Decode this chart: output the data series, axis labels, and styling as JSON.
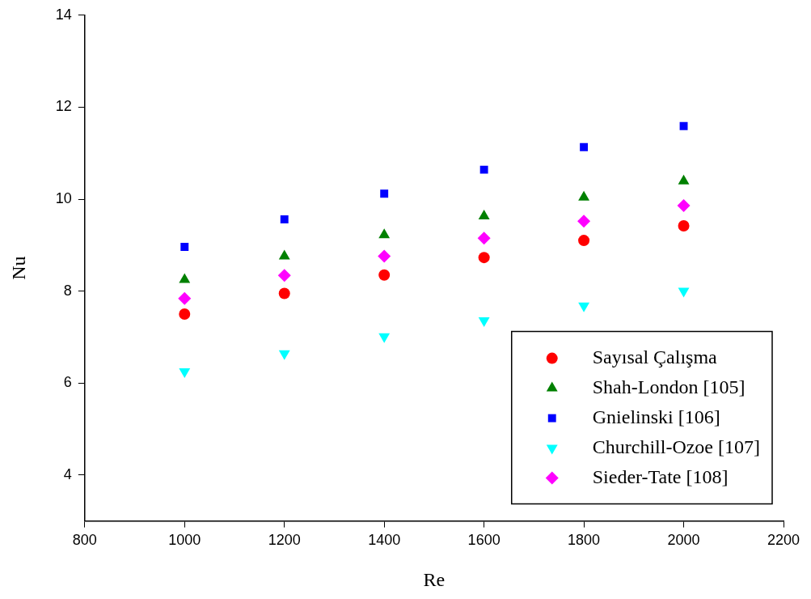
{
  "chart_data": {
    "type": "scatter",
    "xlabel": "Re",
    "ylabel": "Nu",
    "x": [
      1000,
      1200,
      1400,
      1600,
      1800,
      2000
    ],
    "xlim": [
      800,
      2200
    ],
    "xticks": [
      800,
      1000,
      1200,
      1400,
      1600,
      1800,
      2000,
      2200
    ],
    "ylim": [
      3,
      14
    ],
    "yticks": [
      4,
      6,
      8,
      10,
      12,
      14
    ],
    "grid": false,
    "legend": "bottom right",
    "series": [
      {
        "name": "Sayısal Çalışma",
        "color": "#ff0000",
        "marker": "circle",
        "values": [
          7.5,
          7.95,
          8.35,
          8.73,
          9.1,
          9.42
        ]
      },
      {
        "name": "Shah-London [105]",
        "color": "#008000",
        "marker": "triangle",
        "values": [
          8.25,
          8.76,
          9.22,
          9.63,
          10.04,
          10.39
        ]
      },
      {
        "name": "Gnielinski [106]",
        "color": "#0000ff",
        "marker": "square",
        "values": [
          8.96,
          9.56,
          10.12,
          10.64,
          11.13,
          11.59
        ]
      },
      {
        "name": "Churchill-Ozoe [107]",
        "color": "#00ffff",
        "marker": "triangle-down",
        "values": [
          6.25,
          6.64,
          7.01,
          7.36,
          7.68,
          8.0
        ]
      },
      {
        "name": "Sieder-Tate [108]",
        "color": "#ff00ff",
        "marker": "diamond",
        "values": [
          7.84,
          8.34,
          8.76,
          9.15,
          9.52,
          9.86
        ]
      }
    ]
  }
}
